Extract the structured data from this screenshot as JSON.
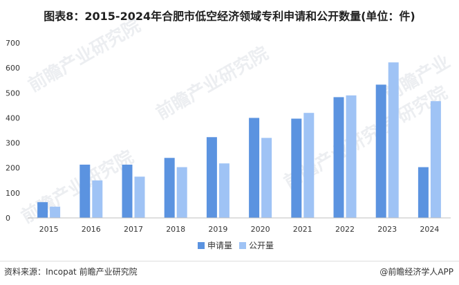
{
  "title": "图表8：2015-2024年合肥市低空经济领域专利申请和公开数量(单位：件)",
  "footer": {
    "source": "资料来源：Incopat 前瞻产业研究院",
    "brand": "@前瞻经济学人APP"
  },
  "watermark": "前瞻产业研究院",
  "colors": {
    "apply": "#5b93e0",
    "publish": "#9fc3f5"
  },
  "chart_data": {
    "type": "bar",
    "categories": [
      "2015",
      "2016",
      "2017",
      "2018",
      "2019",
      "2020",
      "2021",
      "2022",
      "2023",
      "2024"
    ],
    "series": [
      {
        "name": "申请量",
        "values": [
          63,
          213,
          213,
          240,
          323,
          400,
          397,
          483,
          533,
          203
        ]
      },
      {
        "name": "公开量",
        "values": [
          45,
          150,
          165,
          203,
          218,
          320,
          420,
          490,
          622,
          467
        ]
      }
    ],
    "ylim": [
      0,
      700
    ],
    "yticks": [
      0,
      100,
      200,
      300,
      400,
      500,
      600,
      700
    ],
    "legend_position": "bottom-center",
    "grid": false
  }
}
